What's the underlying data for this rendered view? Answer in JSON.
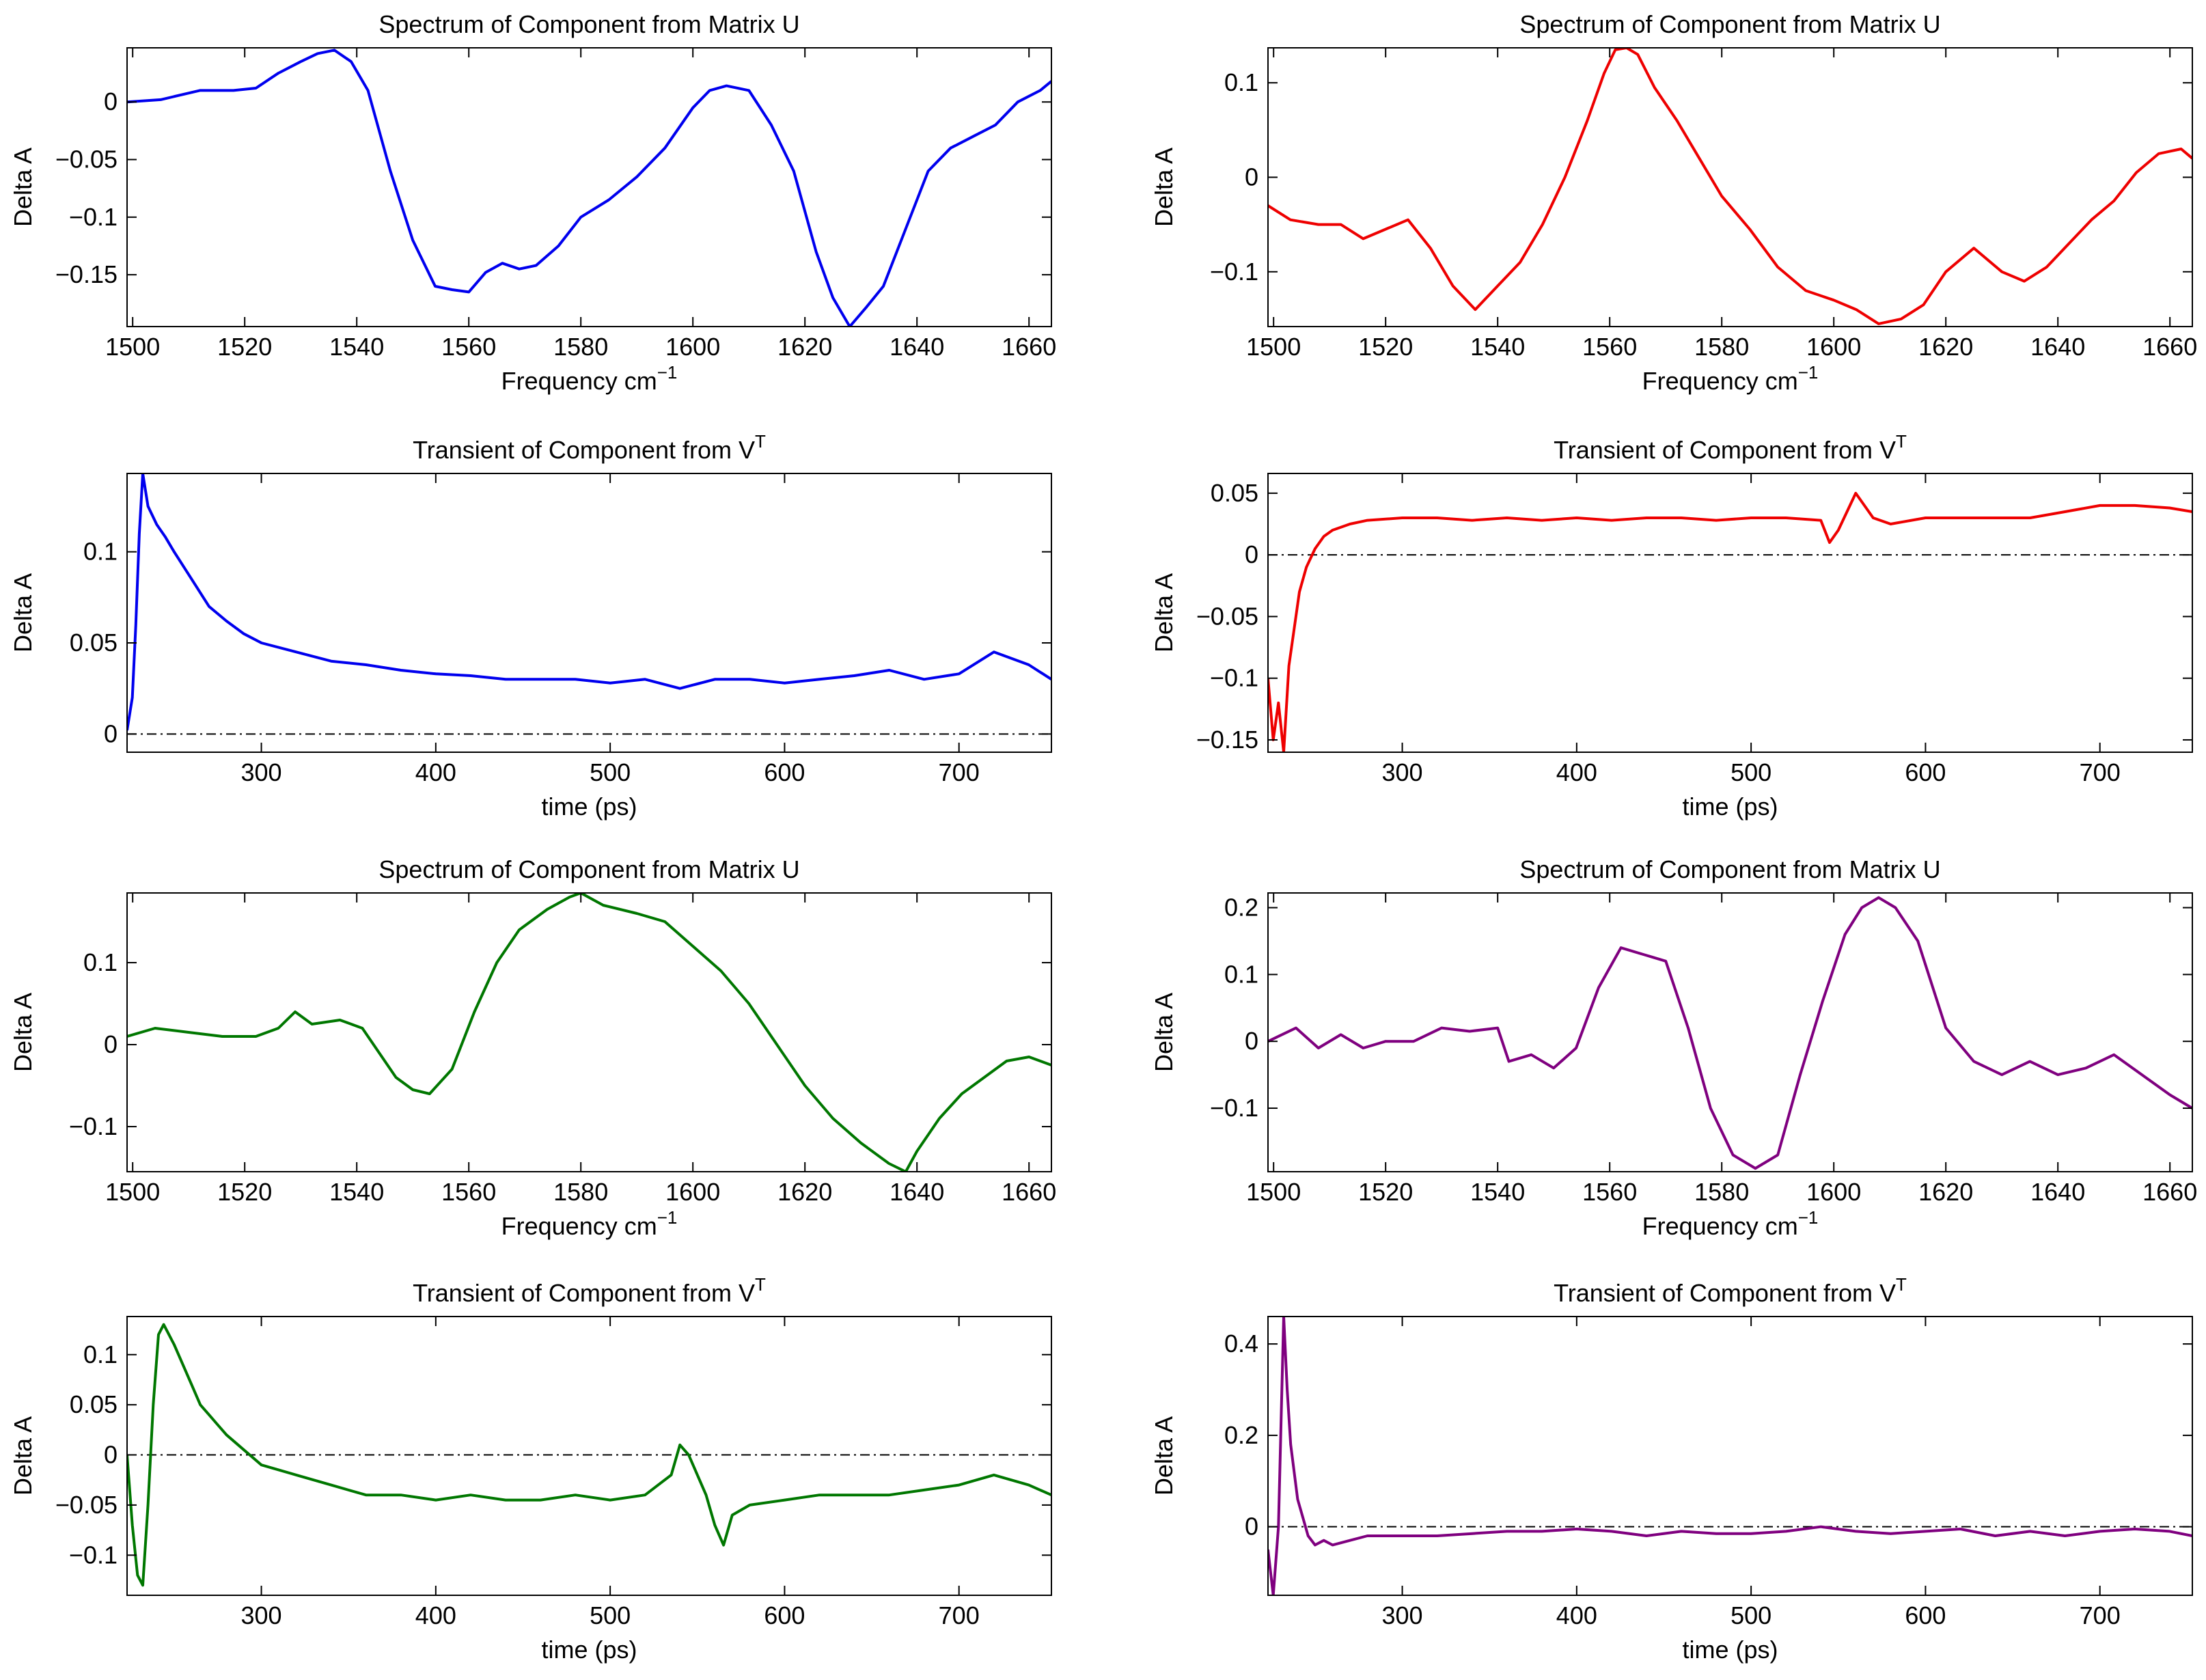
{
  "chart_data": [
    {
      "type": "line",
      "title": "Spectrum of Component from Matrix U",
      "xlabel": "Frequency cm",
      "xlabel_sup": "−1",
      "ylabel": "Delta A",
      "xlim": [
        1499,
        1664
      ],
      "ylim": [
        -0.195,
        0.047
      ],
      "xticks": [
        1500,
        1520,
        1540,
        1560,
        1580,
        1600,
        1620,
        1640,
        1660
      ],
      "yticks": [
        -0.15,
        -0.1,
        -0.05,
        0
      ],
      "yticklabels": [
        "−0.15",
        "−0.1",
        "−0.05",
        "0"
      ],
      "color": "#0000ee",
      "series": [
        {
          "x": [
            1499,
            1505,
            1512,
            1518,
            1522,
            1526,
            1530,
            1533,
            1536,
            1539,
            1542,
            1546,
            1550,
            1554,
            1557,
            1560,
            1563,
            1566,
            1569,
            1572,
            1576,
            1580,
            1585,
            1590,
            1595,
            1600,
            1603,
            1606,
            1610,
            1614,
            1618,
            1622,
            1625,
            1628,
            1631,
            1634,
            1638,
            1642,
            1646,
            1650,
            1654,
            1658,
            1662,
            1664
          ],
          "y": [
            0,
            0.002,
            0.01,
            0.01,
            0.012,
            0.025,
            0.035,
            0.042,
            0.045,
            0.035,
            0.01,
            -0.06,
            -0.12,
            -0.16,
            -0.163,
            -0.165,
            -0.148,
            -0.14,
            -0.145,
            -0.142,
            -0.125,
            -0.1,
            -0.085,
            -0.065,
            -0.04,
            -0.005,
            0.01,
            0.014,
            0.01,
            -0.02,
            -0.06,
            -0.13,
            -0.17,
            -0.195,
            -0.178,
            -0.16,
            -0.11,
            -0.06,
            -0.04,
            -0.03,
            -0.02,
            0,
            0.01,
            0.018
          ]
        }
      ]
    },
    {
      "type": "line",
      "title": "Spectrum of Component from Matrix U",
      "xlabel": "Frequency cm",
      "xlabel_sup": "−1",
      "ylabel": "Delta A",
      "xlim": [
        1499,
        1664
      ],
      "ylim": [
        -0.158,
        0.137
      ],
      "xticks": [
        1500,
        1520,
        1540,
        1560,
        1580,
        1600,
        1620,
        1640,
        1660
      ],
      "yticks": [
        -0.1,
        0,
        0.1
      ],
      "yticklabels": [
        "−0.1",
        "0",
        "0.1"
      ],
      "color": "#ee0000",
      "series": [
        {
          "x": [
            1499,
            1503,
            1508,
            1512,
            1516,
            1520,
            1524,
            1528,
            1532,
            1536,
            1540,
            1544,
            1548,
            1552,
            1556,
            1559,
            1561,
            1563,
            1565,
            1568,
            1572,
            1576,
            1580,
            1585,
            1590,
            1595,
            1600,
            1604,
            1608,
            1612,
            1616,
            1620,
            1625,
            1630,
            1634,
            1638,
            1642,
            1646,
            1650,
            1654,
            1658,
            1662,
            1664
          ],
          "y": [
            -0.03,
            -0.045,
            -0.05,
            -0.05,
            -0.065,
            -0.055,
            -0.045,
            -0.075,
            -0.115,
            -0.14,
            -0.115,
            -0.09,
            -0.05,
            0,
            0.06,
            0.11,
            0.135,
            0.137,
            0.13,
            0.095,
            0.06,
            0.02,
            -0.02,
            -0.055,
            -0.095,
            -0.12,
            -0.13,
            -0.14,
            -0.155,
            -0.15,
            -0.135,
            -0.1,
            -0.075,
            -0.1,
            -0.11,
            -0.095,
            -0.07,
            -0.045,
            -0.025,
            0.005,
            0.025,
            0.03,
            0.02
          ]
        }
      ]
    },
    {
      "type": "line",
      "title": "Transient of Component from V",
      "title_sup": "T",
      "xlabel": "time (ps)",
      "ylabel": "Delta A",
      "xlim": [
        223,
        753
      ],
      "ylim": [
        -0.01,
        0.143
      ],
      "xticks": [
        300,
        400,
        500,
        600,
        700
      ],
      "yticks": [
        0,
        0.05,
        0.1
      ],
      "yticklabels": [
        "0",
        "0.05",
        "0.1"
      ],
      "color": "#0000ee",
      "reference_line": 0,
      "series": [
        {
          "x": [
            223,
            226,
            228,
            230,
            232,
            235,
            240,
            245,
            250,
            260,
            270,
            280,
            290,
            300,
            320,
            340,
            360,
            380,
            400,
            420,
            440,
            460,
            480,
            500,
            520,
            540,
            560,
            580,
            600,
            620,
            640,
            660,
            680,
            700,
            720,
            740,
            753
          ],
          "y": [
            0.002,
            0.02,
            0.06,
            0.11,
            0.143,
            0.125,
            0.115,
            0.108,
            0.1,
            0.085,
            0.07,
            0.062,
            0.055,
            0.05,
            0.045,
            0.04,
            0.038,
            0.035,
            0.033,
            0.032,
            0.03,
            0.03,
            0.03,
            0.028,
            0.03,
            0.025,
            0.03,
            0.03,
            0.028,
            0.03,
            0.032,
            0.035,
            0.03,
            0.033,
            0.045,
            0.038,
            0.03
          ]
        }
      ]
    },
    {
      "type": "line",
      "title": "Transient of Component from V",
      "title_sup": "T",
      "xlabel": "time (ps)",
      "ylabel": "Delta A",
      "xlim": [
        223,
        753
      ],
      "ylim": [
        -0.16,
        0.066
      ],
      "xticks": [
        300,
        400,
        500,
        600,
        700
      ],
      "yticks": [
        -0.15,
        -0.1,
        -0.05,
        0,
        0.05
      ],
      "yticklabels": [
        "−0.15",
        "−0.1",
        "−0.05",
        "0",
        "0.05"
      ],
      "color": "#ee0000",
      "reference_line": 0,
      "series": [
        {
          "x": [
            223,
            226,
            229,
            232,
            235,
            238,
            241,
            245,
            250,
            255,
            260,
            270,
            280,
            300,
            320,
            340,
            360,
            380,
            400,
            420,
            440,
            460,
            480,
            500,
            520,
            540,
            545,
            550,
            560,
            570,
            580,
            600,
            620,
            640,
            660,
            680,
            700,
            720,
            740,
            753
          ],
          "y": [
            -0.1,
            -0.15,
            -0.12,
            -0.16,
            -0.09,
            -0.06,
            -0.03,
            -0.01,
            0.005,
            0.015,
            0.02,
            0.025,
            0.028,
            0.03,
            0.03,
            0.028,
            0.03,
            0.028,
            0.03,
            0.028,
            0.03,
            0.03,
            0.028,
            0.03,
            0.03,
            0.028,
            0.01,
            0.02,
            0.05,
            0.03,
            0.025,
            0.03,
            0.03,
            0.03,
            0.03,
            0.035,
            0.04,
            0.04,
            0.038,
            0.035
          ]
        }
      ]
    },
    {
      "type": "line",
      "title": "Spectrum of Component from Matrix U",
      "xlabel": "Frequency cm",
      "xlabel_sup": "−1",
      "ylabel": "Delta A",
      "xlim": [
        1499,
        1664
      ],
      "ylim": [
        -0.155,
        0.185
      ],
      "xticks": [
        1500,
        1520,
        1540,
        1560,
        1580,
        1600,
        1620,
        1640,
        1660
      ],
      "yticks": [
        -0.1,
        0,
        0.1
      ],
      "yticklabels": [
        "−0.1",
        "0",
        "0.1"
      ],
      "color": "#007700",
      "series": [
        {
          "x": [
            1499,
            1504,
            1510,
            1516,
            1522,
            1526,
            1529,
            1532,
            1537,
            1541,
            1544,
            1547,
            1550,
            1553,
            1557,
            1561,
            1565,
            1569,
            1574,
            1578,
            1580,
            1584,
            1590,
            1595,
            1600,
            1605,
            1610,
            1615,
            1620,
            1625,
            1630,
            1635,
            1638,
            1640,
            1644,
            1648,
            1652,
            1656,
            1660,
            1664
          ],
          "y": [
            0.01,
            0.02,
            0.015,
            0.01,
            0.01,
            0.02,
            0.04,
            0.025,
            0.03,
            0.02,
            -0.01,
            -0.04,
            -0.055,
            -0.06,
            -0.03,
            0.04,
            0.1,
            0.14,
            0.165,
            0.18,
            0.185,
            0.17,
            0.16,
            0.15,
            0.12,
            0.09,
            0.05,
            0,
            -0.05,
            -0.09,
            -0.12,
            -0.145,
            -0.155,
            -0.13,
            -0.09,
            -0.06,
            -0.04,
            -0.02,
            -0.015,
            -0.025
          ]
        }
      ]
    },
    {
      "type": "line",
      "title": "Spectrum of Component from Matrix U",
      "xlabel": "Frequency cm",
      "xlabel_sup": "−1",
      "ylabel": "Delta A",
      "xlim": [
        1499,
        1664
      ],
      "ylim": [
        -0.195,
        0.222
      ],
      "xticks": [
        1500,
        1520,
        1540,
        1560,
        1580,
        1600,
        1620,
        1640,
        1660
      ],
      "yticks": [
        -0.1,
        0,
        0.1,
        0.2
      ],
      "yticklabels": [
        "−0.1",
        "0",
        "0.1",
        "0.2"
      ],
      "color": "#7f007f",
      "series": [
        {
          "x": [
            1499,
            1504,
            1508,
            1512,
            1516,
            1520,
            1525,
            1530,
            1535,
            1540,
            1542,
            1546,
            1550,
            1554,
            1558,
            1562,
            1566,
            1570,
            1574,
            1578,
            1582,
            1586,
            1590,
            1594,
            1598,
            1602,
            1605,
            1608,
            1611,
            1615,
            1620,
            1625,
            1630,
            1635,
            1640,
            1645,
            1650,
            1655,
            1660,
            1664
          ],
          "y": [
            0,
            0.02,
            -0.01,
            0.01,
            -0.01,
            0,
            0,
            0.02,
            0.015,
            0.02,
            -0.03,
            -0.02,
            -0.04,
            -0.01,
            0.08,
            0.14,
            0.13,
            0.12,
            0.02,
            -0.1,
            -0.17,
            -0.19,
            -0.17,
            -0.05,
            0.06,
            0.16,
            0.2,
            0.215,
            0.2,
            0.15,
            0.02,
            -0.03,
            -0.05,
            -0.03,
            -0.05,
            -0.04,
            -0.02,
            -0.05,
            -0.08,
            -0.1
          ]
        }
      ]
    },
    {
      "type": "line",
      "title": "Transient of Component from V",
      "title_sup": "T",
      "xlabel": "time (ps)",
      "ylabel": "Delta A",
      "xlim": [
        223,
        753
      ],
      "ylim": [
        -0.14,
        0.138
      ],
      "xticks": [
        300,
        400,
        500,
        600,
        700
      ],
      "yticks": [
        -0.1,
        -0.05,
        0,
        0.05,
        0.1
      ],
      "yticklabels": [
        "−0.1",
        "−0.05",
        "0",
        "0.05",
        "0.1"
      ],
      "color": "#007700",
      "reference_line": 0,
      "series": [
        {
          "x": [
            223,
            226,
            229,
            232,
            235,
            238,
            241,
            244,
            247,
            250,
            255,
            260,
            265,
            270,
            275,
            280,
            290,
            300,
            320,
            340,
            360,
            380,
            400,
            420,
            440,
            460,
            480,
            500,
            520,
            535,
            540,
            545,
            550,
            555,
            560,
            565,
            570,
            580,
            600,
            620,
            640,
            660,
            680,
            700,
            720,
            740,
            753
          ],
          "y": [
            0,
            -0.07,
            -0.12,
            -0.13,
            -0.05,
            0.05,
            0.12,
            0.13,
            0.12,
            0.11,
            0.09,
            0.07,
            0.05,
            0.04,
            0.03,
            0.02,
            0.005,
            -0.01,
            -0.02,
            -0.03,
            -0.04,
            -0.04,
            -0.045,
            -0.04,
            -0.045,
            -0.045,
            -0.04,
            -0.045,
            -0.04,
            -0.02,
            0.01,
            0,
            -0.02,
            -0.04,
            -0.07,
            -0.09,
            -0.06,
            -0.05,
            -0.045,
            -0.04,
            -0.04,
            -0.04,
            -0.035,
            -0.03,
            -0.02,
            -0.03,
            -0.04
          ]
        }
      ]
    },
    {
      "type": "line",
      "title": "Transient of Component from V",
      "title_sup": "T",
      "xlabel": "time (ps)",
      "ylabel": "Delta A",
      "xlim": [
        223,
        753
      ],
      "ylim": [
        -0.15,
        0.46
      ],
      "xticks": [
        300,
        400,
        500,
        600,
        700
      ],
      "yticks": [
        0,
        0.2,
        0.4
      ],
      "yticklabels": [
        "0",
        "0.2",
        "0.4"
      ],
      "color": "#7f007f",
      "reference_line": 0,
      "series": [
        {
          "x": [
            223,
            226,
            229,
            232,
            234,
            236,
            238,
            240,
            243,
            246,
            250,
            255,
            260,
            270,
            280,
            300,
            320,
            340,
            360,
            380,
            400,
            420,
            440,
            460,
            480,
            500,
            520,
            540,
            560,
            580,
            600,
            620,
            640,
            660,
            680,
            700,
            720,
            740,
            753
          ],
          "y": [
            -0.05,
            -0.15,
            0,
            0.46,
            0.3,
            0.18,
            0.12,
            0.06,
            0.02,
            -0.02,
            -0.04,
            -0.03,
            -0.04,
            -0.03,
            -0.02,
            -0.02,
            -0.02,
            -0.015,
            -0.01,
            -0.01,
            -0.005,
            -0.01,
            -0.02,
            -0.01,
            -0.015,
            -0.015,
            -0.01,
            0,
            -0.01,
            -0.015,
            -0.01,
            -0.005,
            -0.02,
            -0.01,
            -0.02,
            -0.01,
            -0.005,
            -0.01,
            -0.02
          ]
        }
      ]
    }
  ]
}
